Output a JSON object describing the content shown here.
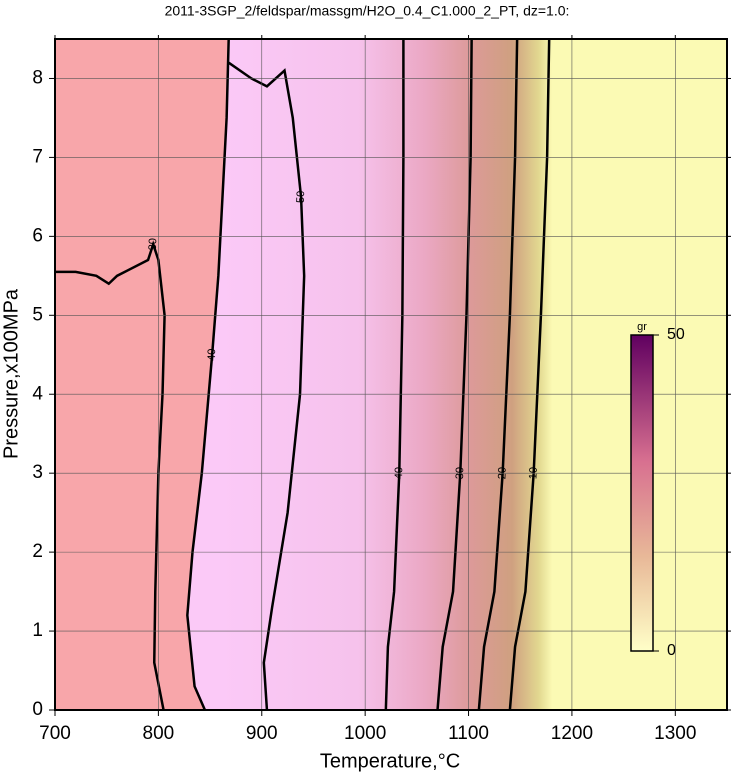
{
  "chart_data": {
    "type": "contour",
    "title": "2011-3SGP_2/feldspar/massgm/H2O_0.4_C1.000_2_PT, dz=1.0:",
    "xlabel": "Temperature,°C",
    "ylabel": "Pressure,x100MPa",
    "xlim": [
      700,
      1350
    ],
    "ylim": [
      0,
      8.5
    ],
    "xticks": [
      700,
      800,
      900,
      1000,
      1100,
      1200,
      1300
    ],
    "yticks": [
      0,
      1,
      2,
      3,
      4,
      5,
      6,
      7,
      8
    ],
    "grid": true,
    "contours": [
      {
        "level": 40,
        "x": [
          845,
          835,
          828,
          833,
          842,
          852,
          858,
          862,
          866,
          868
        ],
        "y": [
          0,
          0.3,
          1.2,
          2,
          3,
          4.5,
          5.5,
          6.5,
          7.5,
          8.5
        ]
      },
      {
        "level": 30,
        "x": [
          805,
          796,
          797,
          800,
          804,
          806,
          800,
          795,
          790,
          760,
          752,
          740,
          720,
          700
        ],
        "y": [
          0,
          0.6,
          1.5,
          3,
          4,
          5,
          5.7,
          5.9,
          5.7,
          5.5,
          5.4,
          5.5,
          5.55,
          5.55
        ]
      },
      {
        "level": 50,
        "x": [
          905,
          902,
          910,
          925,
          937,
          941,
          938,
          930,
          922,
          905,
          890,
          868
        ],
        "y": [
          0,
          0.6,
          1.3,
          2.5,
          4,
          5.5,
          6.5,
          7.5,
          8.1,
          7.9,
          8,
          8.2
        ]
      },
      {
        "level": 40,
        "x": [
          1020,
          1022,
          1028,
          1033,
          1036,
          1037,
          1037
        ],
        "y": [
          0,
          0.8,
          1.5,
          3,
          5,
          7,
          8.5
        ]
      },
      {
        "level": 30,
        "x": [
          1070,
          1075,
          1085,
          1092,
          1098,
          1102,
          1103
        ],
        "y": [
          0,
          0.8,
          1.5,
          3,
          5,
          7,
          8.5
        ]
      },
      {
        "level": 20,
        "x": [
          1110,
          1115,
          1125,
          1133,
          1140,
          1145,
          1147
        ],
        "y": [
          0,
          0.8,
          1.5,
          3,
          5,
          7,
          8.5
        ]
      },
      {
        "level": 10,
        "x": [
          1140,
          1145,
          1155,
          1163,
          1170,
          1176,
          1178
        ],
        "y": [
          0,
          0.8,
          1.5,
          3,
          5,
          7,
          8.5
        ]
      }
    ],
    "colorbar": {
      "label": "gr",
      "lim": [
        0,
        50
      ],
      "ticks": [
        0,
        50
      ]
    }
  }
}
